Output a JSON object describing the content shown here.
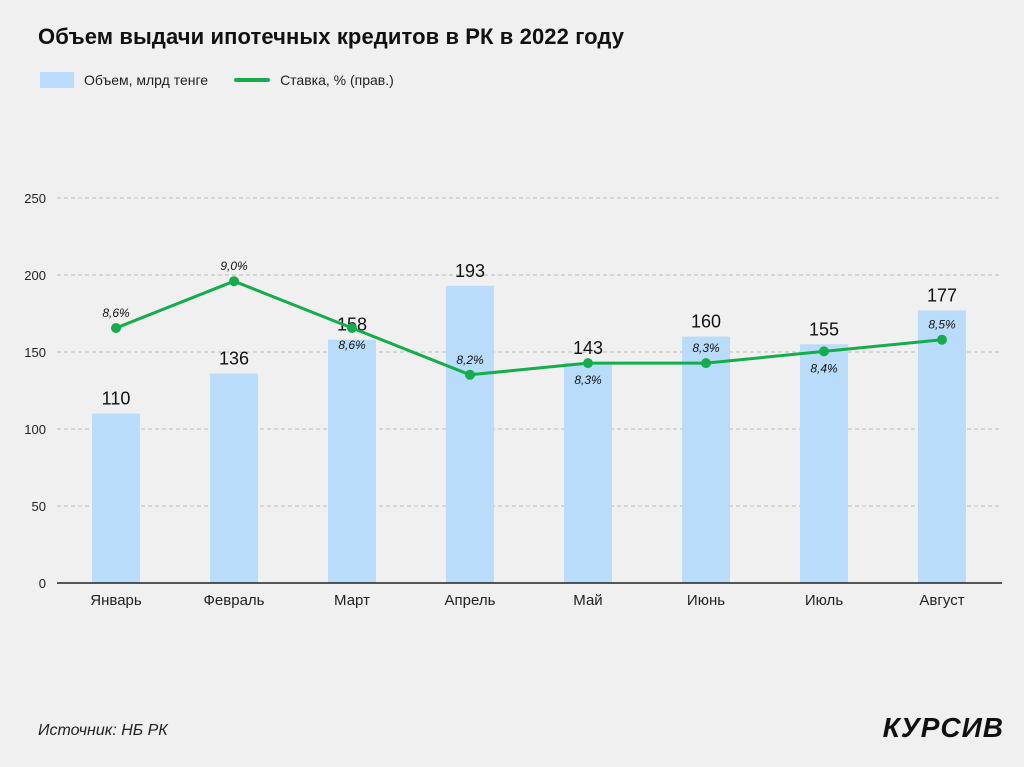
{
  "header": {
    "title": "Объем выдачи ипотечных кредитов в РК в 2022 году"
  },
  "legend": {
    "bar_label": "Объем, млрд тенге",
    "line_label": "Ставка, % (прав.)"
  },
  "footer": {
    "source": "Источник: НБ РК",
    "logo": "КУРСИВ"
  },
  "colors": {
    "bar": "#b8dcf9",
    "line": "#14ad4c",
    "grid": "#bdbdbd",
    "axis": "#222222"
  },
  "chart_data": {
    "type": "bar",
    "categories": [
      "Январь",
      "Февраль",
      "Март",
      "Апрель",
      "Май",
      "Июнь",
      "Июль",
      "Август"
    ],
    "ylim": [
      0,
      250
    ],
    "yticks": [
      "0",
      "50",
      "100",
      "150",
      "200",
      "250"
    ],
    "grid": true,
    "legend_position": "top-left",
    "series": [
      {
        "name": "Объем, млрд тенге",
        "type": "bar",
        "axis": "left",
        "values": [
          110,
          136,
          158,
          193,
          143,
          160,
          155,
          177
        ],
        "labels": [
          "110",
          "136",
          "158",
          "193",
          "143",
          "160",
          "155",
          "177"
        ]
      },
      {
        "name": "Ставка, % (прав.)",
        "type": "line",
        "axis": "right",
        "values": [
          8.6,
          9.0,
          8.6,
          8.2,
          8.3,
          8.3,
          8.4,
          8.5
        ],
        "labels": [
          "8,6%",
          "9,0%",
          "8,6%",
          "8,2%",
          "8,3%",
          "8,3%",
          "8,4%",
          "8,5%"
        ],
        "label_positions": [
          "above",
          "above",
          "below",
          "above",
          "below",
          "above",
          "below",
          "above"
        ]
      }
    ]
  }
}
